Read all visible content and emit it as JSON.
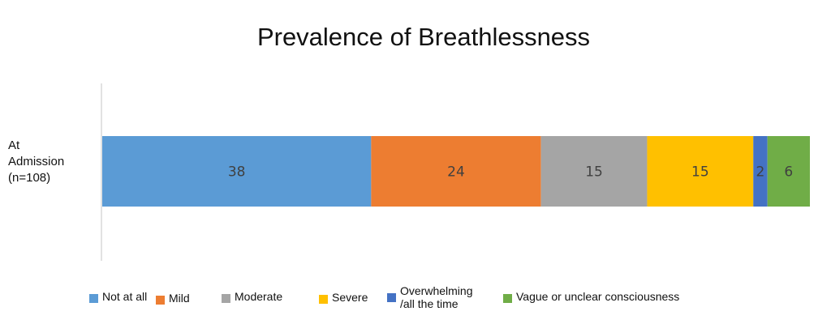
{
  "chart_data": {
    "type": "bar",
    "orientation": "horizontal",
    "stacked": true,
    "title": "Prevalence of Breathlessness",
    "categories": [
      "At\nAdmission\n(n=108)"
    ],
    "series": [
      {
        "name": "Not at all",
        "values": [
          38
        ],
        "color": "#5B9BD5"
      },
      {
        "name": "Mild",
        "values": [
          24
        ],
        "color": "#ED7D31"
      },
      {
        "name": "Moderate",
        "values": [
          15
        ],
        "color": "#A5A5A5"
      },
      {
        "name": "Severe",
        "values": [
          15
        ],
        "color": "#FFC000"
      },
      {
        "name": "Overwhelming\n/all the time",
        "values": [
          2
        ],
        "color": "#4472C4"
      },
      {
        "name": "Vague or unclear consciousness",
        "values": [
          6
        ],
        "color": "#70AD47"
      }
    ],
    "xlim": [
      0,
      100
    ],
    "grid": false,
    "legend_position": "bottom"
  }
}
